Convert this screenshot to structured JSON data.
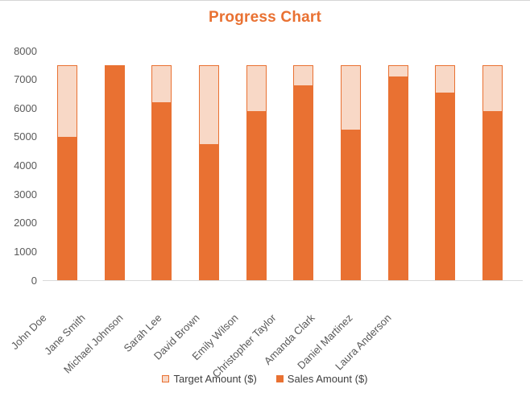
{
  "title": "Progress Chart",
  "colors": {
    "accent": "#E97132",
    "target_fill": "#F8D8C6",
    "axis_text": "#595959",
    "legend_text": "#3F3F3F",
    "axis_line": "#D9D9D9",
    "top_border": "#D6D6D6"
  },
  "chart_data": {
    "type": "bar",
    "variant": "overlay-progress",
    "title": "Progress Chart",
    "categories": [
      "John Doe",
      "Jane Smith",
      "Michael Johnson",
      "Sarah Lee",
      "David Brown",
      "Emily Wilson",
      "Christopher Taylor",
      "Amanda Clark",
      "Daniel Martinez",
      "Laura Anderson"
    ],
    "series": [
      {
        "name": "Target Amount ($)",
        "values": [
          7500,
          7500,
          7500,
          7500,
          7500,
          7500,
          7500,
          7500,
          7500,
          7500
        ],
        "fill": "#F8D8C6",
        "border": "#E97132"
      },
      {
        "name": "Sales Amount ($)",
        "values": [
          5000,
          7500,
          6200,
          4750,
          5900,
          6800,
          5250,
          7100,
          6550,
          5900
        ],
        "fill": "#E97132",
        "border": "#E97132"
      }
    ],
    "ylim": [
      0,
      8000
    ],
    "ytick_step": 1000,
    "yticks": [
      "0",
      "1000",
      "2000",
      "3000",
      "4000",
      "5000",
      "6000",
      "7000",
      "8000"
    ],
    "grid": false,
    "legend_position": "bottom",
    "x_label_rotation": 45
  }
}
